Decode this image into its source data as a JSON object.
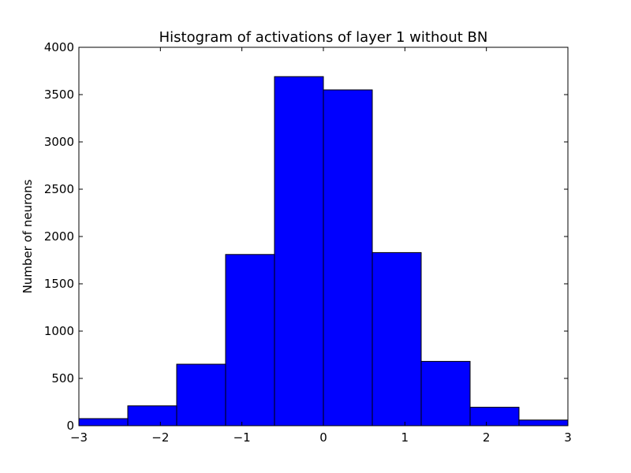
{
  "chart_data": {
    "type": "bar",
    "title": "Histogram of activations of layer 1  without BN",
    "xlabel": "",
    "ylabel": "Number of neurons",
    "xlim": [
      -3,
      3
    ],
    "ylim": [
      0,
      4000
    ],
    "bin_edges": [
      -3,
      -2.4,
      -1.8,
      -1.2,
      -0.6,
      0,
      0.6,
      1.2,
      1.8,
      2.4,
      3
    ],
    "values": [
      75,
      210,
      650,
      1810,
      3690,
      3550,
      1830,
      680,
      195,
      60
    ],
    "x_ticks": [
      -3,
      -2,
      -1,
      0,
      1,
      2,
      3
    ],
    "x_tick_labels": [
      "−3",
      "−2",
      "−1",
      "0",
      "1",
      "2",
      "3"
    ],
    "y_ticks": [
      0,
      500,
      1000,
      1500,
      2000,
      2500,
      3000,
      3500,
      4000
    ],
    "y_tick_labels": [
      "0",
      "500",
      "1000",
      "1500",
      "2000",
      "2500",
      "3000",
      "3500",
      "4000"
    ],
    "bar_color": "#0000ff",
    "edge_color": "#000000",
    "grid": false,
    "legend": "none"
  }
}
